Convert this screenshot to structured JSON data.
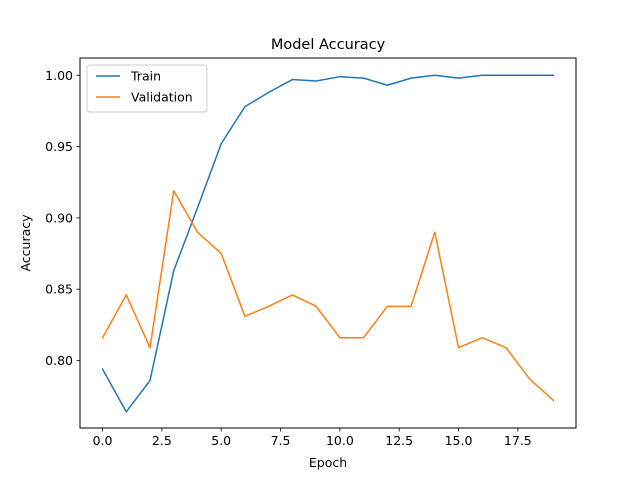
{
  "chart_data": {
    "type": "line",
    "title": "Model Accuracy",
    "xlabel": "Epoch",
    "ylabel": "Accuracy",
    "xlim": [
      -0.95,
      19.95
    ],
    "ylim": [
      0.7527,
      1.0121
    ],
    "x_ticks": [
      0.0,
      2.5,
      5.0,
      7.5,
      10.0,
      12.5,
      15.0,
      17.5
    ],
    "x_tick_labels": [
      "0.0",
      "2.5",
      "5.0",
      "7.5",
      "10.0",
      "12.5",
      "15.0",
      "17.5"
    ],
    "y_ticks": [
      0.8,
      0.85,
      0.9,
      0.95,
      1.0
    ],
    "y_tick_labels": [
      "0.80",
      "0.85",
      "0.90",
      "0.95",
      "1.00"
    ],
    "grid": false,
    "legend_position": "top-left",
    "x": [
      0,
      1,
      2,
      3,
      4,
      5,
      6,
      7,
      8,
      9,
      10,
      11,
      12,
      13,
      14,
      15,
      16,
      17,
      18,
      19
    ],
    "series": [
      {
        "name": "Train",
        "color": "#1f77b4",
        "values": [
          0.794,
          0.764,
          0.786,
          0.863,
          0.907,
          0.952,
          0.978,
          0.988,
          0.997,
          0.996,
          0.999,
          0.998,
          0.993,
          0.998,
          1.0,
          0.998,
          1.0,
          1.0,
          1.0,
          1.0
        ]
      },
      {
        "name": "Validation",
        "color": "#ff7f0e",
        "values": [
          0.816,
          0.846,
          0.809,
          0.919,
          0.89,
          0.875,
          0.831,
          0.838,
          0.846,
          0.838,
          0.816,
          0.816,
          0.838,
          0.838,
          0.89,
          0.809,
          0.816,
          0.809,
          0.787,
          0.772
        ]
      }
    ]
  }
}
